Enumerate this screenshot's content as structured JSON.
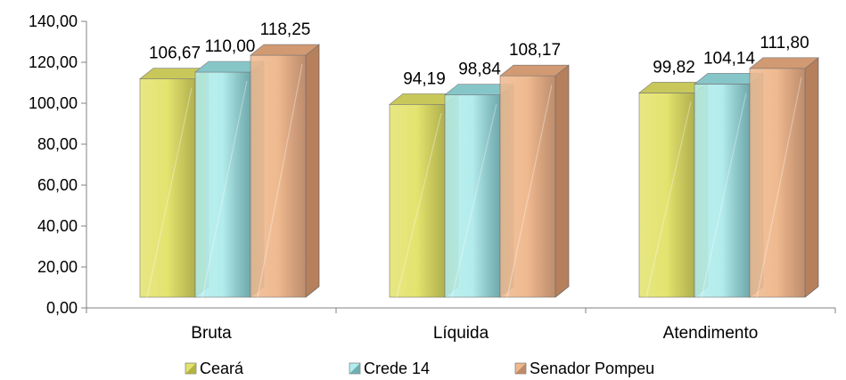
{
  "chart_data": {
    "type": "bar",
    "title": "",
    "xlabel": "",
    "ylabel": "",
    "categories": [
      "Bruta",
      "Líquida",
      "Atendimento"
    ],
    "series": [
      {
        "name": "Ceará",
        "values": [
          106.67,
          94.19,
          99.82
        ],
        "value_labels": [
          "106,67",
          "94,19",
          "99,82"
        ]
      },
      {
        "name": "Crede 14",
        "values": [
          110.0,
          98.84,
          104.14
        ],
        "value_labels": [
          "110,00",
          "98,84",
          "104,14"
        ]
      },
      {
        "name": "Senador Pompeu",
        "values": [
          118.25,
          108.17,
          111.8
        ],
        "value_labels": [
          "118,25",
          "108,17",
          "111,80"
        ]
      }
    ],
    "ylim": [
      0,
      140
    ],
    "yticks": [
      0,
      20,
      40,
      60,
      80,
      100,
      120,
      140
    ],
    "ytick_labels": [
      "0,00",
      "20,00",
      "40,00",
      "60,00",
      "80,00",
      "100,00",
      "120,00",
      "140,00"
    ],
    "grid": false,
    "legend": "bottom",
    "colors": {
      "Ceará": {
        "front": "#e3e36f",
        "side": "#a8a83a",
        "top": "#c8c85a"
      },
      "Crede 14": {
        "front": "#b3ecec",
        "side": "#5f9fa3",
        "top": "#86c6c9"
      },
      "Senador Pompeu": {
        "front": "#efb98f",
        "side": "#b6805d",
        "top": "#d29a72"
      }
    }
  }
}
